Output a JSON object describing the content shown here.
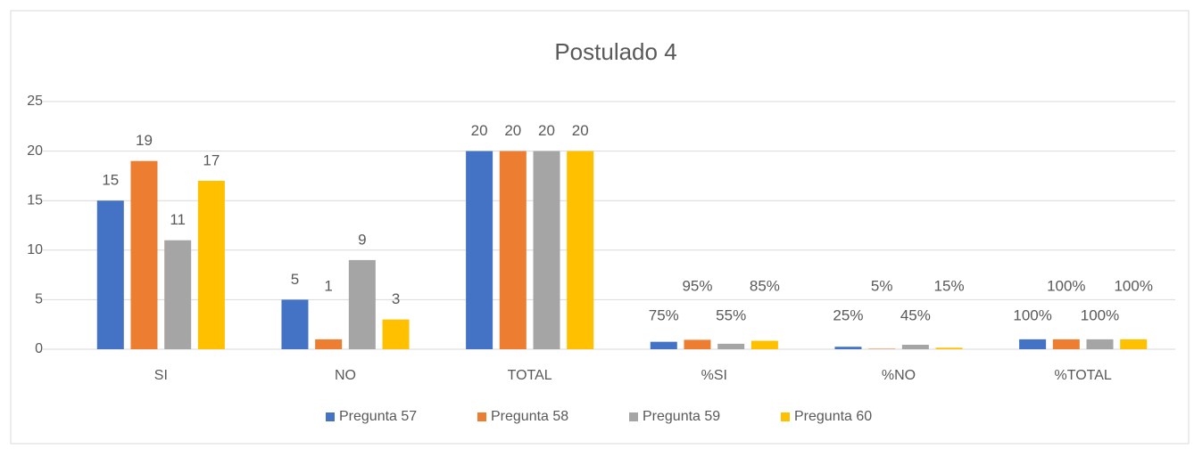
{
  "chart_data": {
    "type": "bar",
    "title": "Postulado 4",
    "categories": [
      "SI",
      "NO",
      "TOTAL",
      "%SI",
      "%NO",
      "%TOTAL"
    ],
    "series": [
      {
        "name": "Pregunta 57",
        "color": "#4472c4",
        "values": [
          15,
          5,
          20,
          0.75,
          0.25,
          1
        ],
        "value_labels": [
          "15",
          "5",
          "20",
          "75%",
          "25%",
          "100%"
        ]
      },
      {
        "name": "Pregunta 58",
        "color": "#ed7d31",
        "values": [
          19,
          1,
          20,
          0.95,
          0.05,
          1
        ],
        "value_labels": [
          "19",
          "1",
          "20",
          "95%",
          "5%",
          "100%"
        ]
      },
      {
        "name": "Pregunta 59",
        "color": "#a5a5a5",
        "values": [
          11,
          9,
          20,
          0.55,
          0.45,
          1
        ],
        "value_labels": [
          "11",
          "9",
          "20",
          "55%",
          "45%",
          "100%"
        ]
      },
      {
        "name": "Pregunta 60",
        "color": "#ffc000",
        "values": [
          17,
          3,
          20,
          0.85,
          0.15,
          1
        ],
        "value_labels": [
          "17",
          "3",
          "20",
          "85%",
          "15%",
          "100%"
        ]
      }
    ],
    "ylim": [
      0,
      25
    ],
    "yticks": [
      0,
      5,
      10,
      15,
      20,
      25
    ],
    "grid": true,
    "legend": "bottom"
  }
}
